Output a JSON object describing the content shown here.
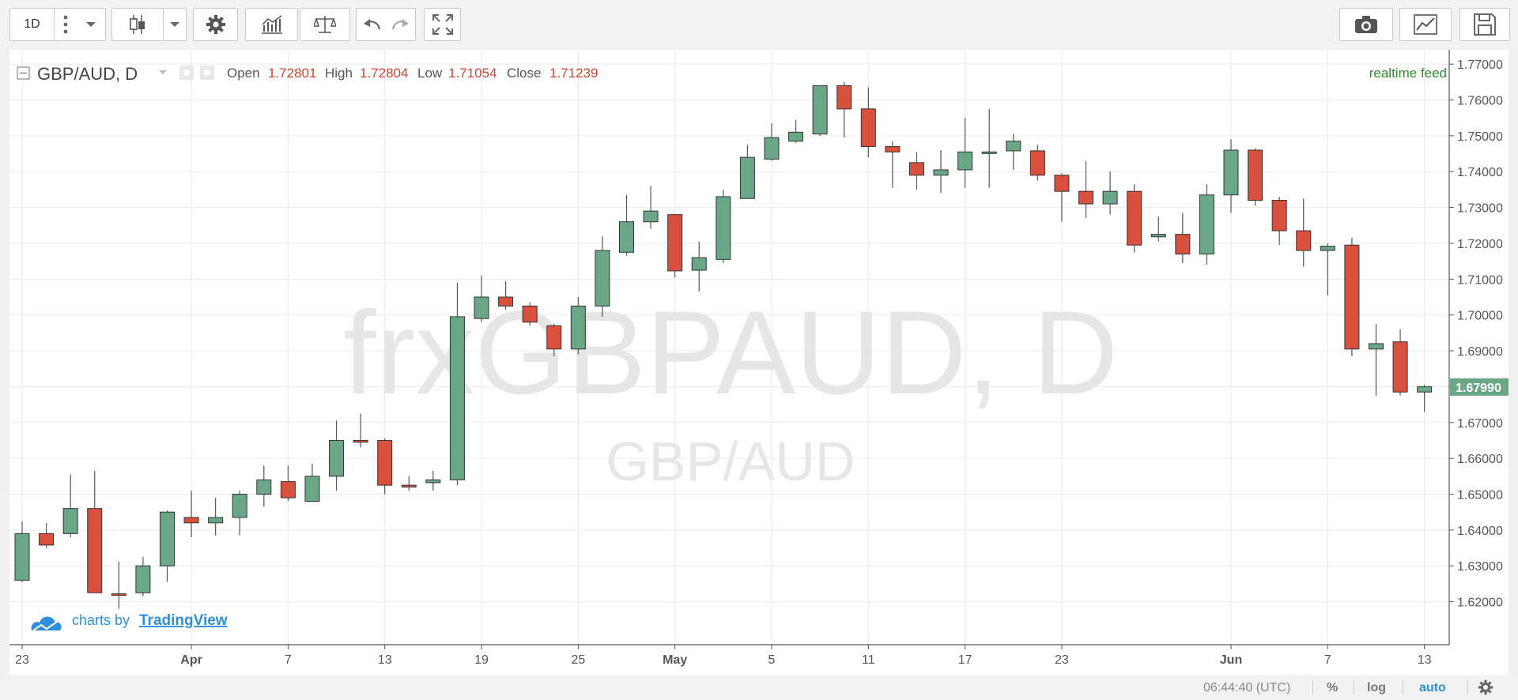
{
  "toolbar": {
    "interval": "1D",
    "colors": {
      "icon": "#666666",
      "border": "#c9c9c9"
    }
  },
  "legend": {
    "symbol": "GBP/AUD, D",
    "open_label": "Open",
    "open": "1.72801",
    "high_label": "High",
    "high": "1.72804",
    "low_label": "Low",
    "low": "1.71054",
    "close_label": "Close",
    "close": "1.71239",
    "realtime": "realtime feed"
  },
  "watermark": {
    "main": "frxGBPAUD, D",
    "sub": "GBP/AUD"
  },
  "branding": {
    "prefix": "charts by",
    "link": "TradingView"
  },
  "status": {
    "time": "06:44:40 (UTC)",
    "percent": "%",
    "log": "log",
    "auto": "auto"
  },
  "chart_data": {
    "type": "candlestick",
    "up_color": "#6aa786",
    "down_color": "#d9503f",
    "last_price": "1.67990",
    "ylim": [
      1.608,
      1.774
    ],
    "y_ticks": [
      "1.62000",
      "1.63000",
      "1.64000",
      "1.65000",
      "1.66000",
      "1.67000",
      "1.68000",
      "1.69000",
      "1.70000",
      "1.71000",
      "1.72000",
      "1.73000",
      "1.74000",
      "1.75000",
      "1.76000",
      "1.77000"
    ],
    "x_ticks": [
      {
        "label": "23",
        "i": 0
      },
      {
        "label": "Apr",
        "i": 7
      },
      {
        "label": "7",
        "i": 11
      },
      {
        "label": "13",
        "i": 15
      },
      {
        "label": "19",
        "i": 19
      },
      {
        "label": "25",
        "i": 23
      },
      {
        "label": "May",
        "i": 27
      },
      {
        "label": "5",
        "i": 31
      },
      {
        "label": "11",
        "i": 35
      },
      {
        "label": "17",
        "i": 39
      },
      {
        "label": "23",
        "i": 43
      },
      {
        "label": "Jun",
        "i": 50
      },
      {
        "label": "7",
        "i": 54
      },
      {
        "label": "13",
        "i": 58
      }
    ],
    "candles": [
      {
        "o": 1.626,
        "h": 1.6425,
        "l": 1.6255,
        "c": 1.639
      },
      {
        "o": 1.639,
        "h": 1.642,
        "l": 1.635,
        "c": 1.6358
      },
      {
        "o": 1.639,
        "h": 1.6555,
        "l": 1.638,
        "c": 1.646
      },
      {
        "o": 1.646,
        "h": 1.6565,
        "l": 1.6225,
        "c": 1.6225
      },
      {
        "o": 1.6222,
        "h": 1.6312,
        "l": 1.618,
        "c": 1.622
      },
      {
        "o": 1.6225,
        "h": 1.6325,
        "l": 1.6215,
        "c": 1.63
      },
      {
        "o": 1.63,
        "h": 1.6455,
        "l": 1.6255,
        "c": 1.645
      },
      {
        "o": 1.6435,
        "h": 1.651,
        "l": 1.638,
        "c": 1.642
      },
      {
        "o": 1.642,
        "h": 1.649,
        "l": 1.6385,
        "c": 1.6435
      },
      {
        "o": 1.6435,
        "h": 1.651,
        "l": 1.6385,
        "c": 1.65
      },
      {
        "o": 1.65,
        "h": 1.658,
        "l": 1.6465,
        "c": 1.654
      },
      {
        "o": 1.6535,
        "h": 1.658,
        "l": 1.648,
        "c": 1.649
      },
      {
        "o": 1.648,
        "h": 1.6585,
        "l": 1.648,
        "c": 1.655
      },
      {
        "o": 1.655,
        "h": 1.6705,
        "l": 1.651,
        "c": 1.665
      },
      {
        "o": 1.665,
        "h": 1.6725,
        "l": 1.663,
        "c": 1.6645
      },
      {
        "o": 1.665,
        "h": 1.6655,
        "l": 1.65,
        "c": 1.6525
      },
      {
        "o": 1.6525,
        "h": 1.655,
        "l": 1.651,
        "c": 1.652
      },
      {
        "o": 1.6532,
        "h": 1.6565,
        "l": 1.651,
        "c": 1.654
      },
      {
        "o": 1.654,
        "h": 1.709,
        "l": 1.6525,
        "c": 1.6995
      },
      {
        "o": 1.699,
        "h": 1.711,
        "l": 1.698,
        "c": 1.705
      },
      {
        "o": 1.705,
        "h": 1.7095,
        "l": 1.7015,
        "c": 1.7025
      },
      {
        "o": 1.7025,
        "h": 1.7035,
        "l": 1.697,
        "c": 1.698
      },
      {
        "o": 1.697,
        "h": 1.6975,
        "l": 1.6885,
        "c": 1.6905
      },
      {
        "o": 1.6905,
        "h": 1.705,
        "l": 1.689,
        "c": 1.7025
      },
      {
        "o": 1.7025,
        "h": 1.722,
        "l": 1.6995,
        "c": 1.718
      },
      {
        "o": 1.7175,
        "h": 1.7335,
        "l": 1.7165,
        "c": 1.726
      },
      {
        "o": 1.726,
        "h": 1.736,
        "l": 1.724,
        "c": 1.729
      },
      {
        "o": 1.728,
        "h": 1.7282,
        "l": 1.7105,
        "c": 1.7123
      },
      {
        "o": 1.7125,
        "h": 1.7205,
        "l": 1.7065,
        "c": 1.716
      },
      {
        "o": 1.7155,
        "h": 1.735,
        "l": 1.7145,
        "c": 1.733
      },
      {
        "o": 1.7325,
        "h": 1.7475,
        "l": 1.7325,
        "c": 1.744
      },
      {
        "o": 1.7435,
        "h": 1.7535,
        "l": 1.743,
        "c": 1.7495
      },
      {
        "o": 1.7485,
        "h": 1.7545,
        "l": 1.748,
        "c": 1.751
      },
      {
        "o": 1.7505,
        "h": 1.764,
        "l": 1.75,
        "c": 1.764
      },
      {
        "o": 1.764,
        "h": 1.765,
        "l": 1.7495,
        "c": 1.7575
      },
      {
        "o": 1.7575,
        "h": 1.7635,
        "l": 1.744,
        "c": 1.747
      },
      {
        "o": 1.747,
        "h": 1.7485,
        "l": 1.7355,
        "c": 1.7455
      },
      {
        "o": 1.7425,
        "h": 1.7455,
        "l": 1.735,
        "c": 1.739
      },
      {
        "o": 1.739,
        "h": 1.746,
        "l": 1.734,
        "c": 1.7405
      },
      {
        "o": 1.7405,
        "h": 1.755,
        "l": 1.7355,
        "c": 1.7455
      },
      {
        "o": 1.7455,
        "h": 1.7575,
        "l": 1.7355,
        "c": 1.7455
      },
      {
        "o": 1.7458,
        "h": 1.7505,
        "l": 1.7405,
        "c": 1.7485
      },
      {
        "o": 1.7458,
        "h": 1.7475,
        "l": 1.7375,
        "c": 1.739
      },
      {
        "o": 1.739,
        "h": 1.7395,
        "l": 1.726,
        "c": 1.7345
      },
      {
        "o": 1.7345,
        "h": 1.743,
        "l": 1.727,
        "c": 1.731
      },
      {
        "o": 1.731,
        "h": 1.74,
        "l": 1.728,
        "c": 1.7345
      },
      {
        "o": 1.7345,
        "h": 1.7365,
        "l": 1.7175,
        "c": 1.7195
      },
      {
        "o": 1.7218,
        "h": 1.7275,
        "l": 1.7205,
        "c": 1.7225
      },
      {
        "o": 1.7225,
        "h": 1.7285,
        "l": 1.7145,
        "c": 1.717
      },
      {
        "o": 1.717,
        "h": 1.7365,
        "l": 1.714,
        "c": 1.7335
      },
      {
        "o": 1.7335,
        "h": 1.749,
        "l": 1.7285,
        "c": 1.746
      },
      {
        "o": 1.746,
        "h": 1.7465,
        "l": 1.7305,
        "c": 1.732
      },
      {
        "o": 1.732,
        "h": 1.733,
        "l": 1.7195,
        "c": 1.7235
      },
      {
        "o": 1.7235,
        "h": 1.7325,
        "l": 1.7135,
        "c": 1.718
      },
      {
        "o": 1.718,
        "h": 1.72,
        "l": 1.7055,
        "c": 1.7192
      },
      {
        "o": 1.7195,
        "h": 1.7215,
        "l": 1.6885,
        "c": 1.6905
      },
      {
        "o": 1.6905,
        "h": 1.6975,
        "l": 1.6775,
        "c": 1.692
      },
      {
        "o": 1.6925,
        "h": 1.696,
        "l": 1.6775,
        "c": 1.6785
      },
      {
        "o": 1.6785,
        "h": 1.6805,
        "l": 1.673,
        "c": 1.68
      }
    ]
  }
}
